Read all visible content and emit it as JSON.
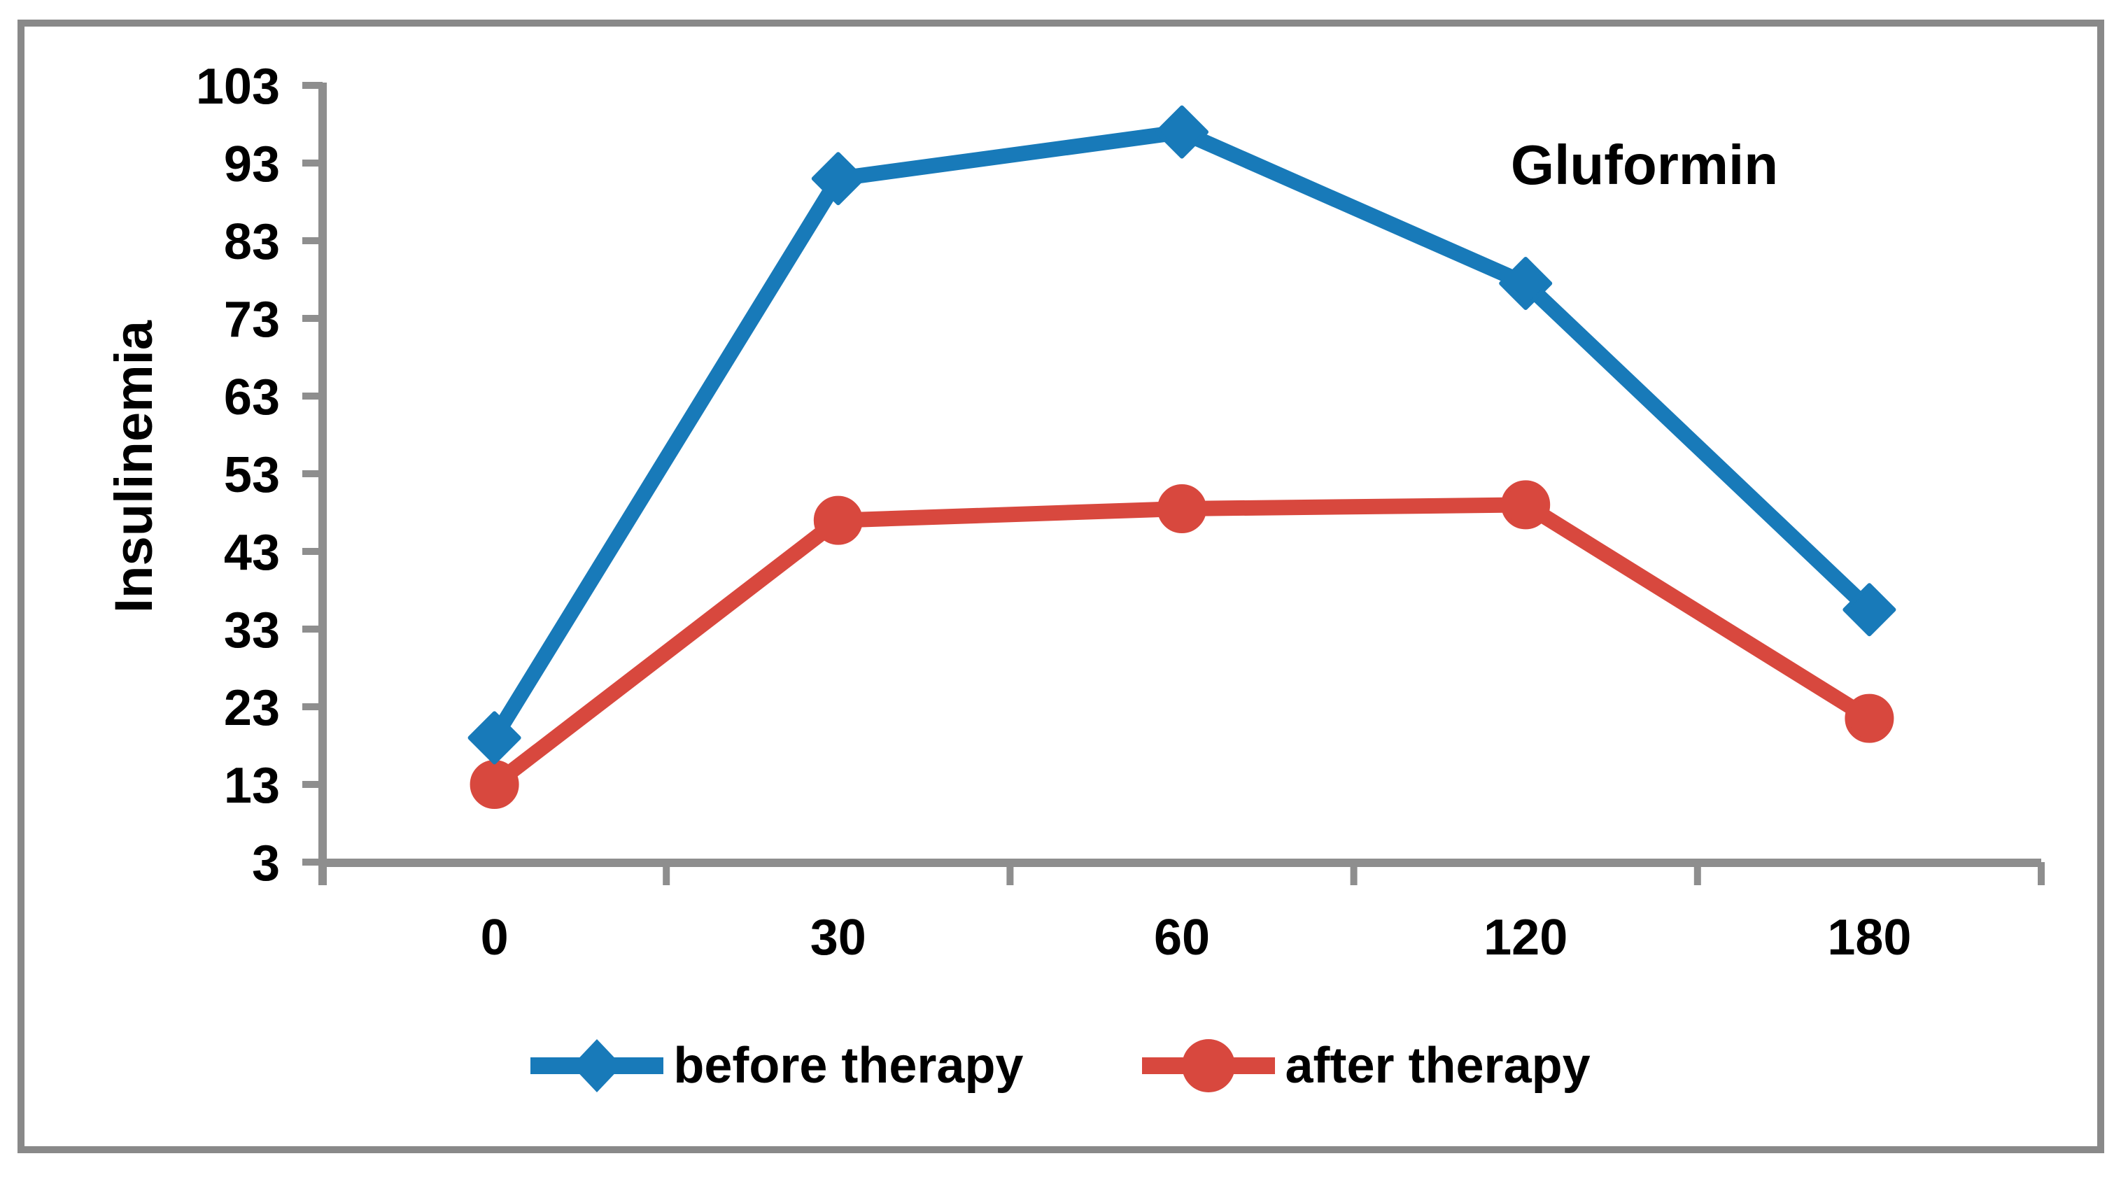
{
  "chart_data": {
    "type": "line",
    "title": "Gluformin",
    "ylabel": "Insulinemia",
    "xlabel": "",
    "categories": [
      "0",
      "30",
      "60",
      "120",
      "180"
    ],
    "series": [
      {
        "name": "before therapy",
        "color": "#187ab9",
        "marker": "diamond",
        "values": [
          19,
          91,
          97,
          77.5,
          35.5
        ]
      },
      {
        "name": "after therapy",
        "color": "#d8483e",
        "marker": "circle",
        "values": [
          13,
          47,
          48.5,
          49,
          21.5
        ]
      }
    ],
    "ylim": [
      3,
      103
    ],
    "yticks": [
      3,
      13,
      23,
      33,
      43,
      53,
      63,
      73,
      83,
      93,
      103
    ],
    "grid": false,
    "legend_position": "bottom",
    "axis_color": "#8e8e8e",
    "frame_color": "#898989",
    "text_color": "#000000"
  }
}
